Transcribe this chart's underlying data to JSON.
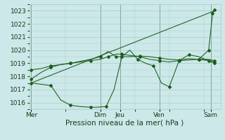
{
  "title": "",
  "xlabel": "Pression niveau de la mer( hPa )",
  "background_color": "#cce8e8",
  "grid_color": "#aacccc",
  "line_color": "#1a5c1a",
  "ylim": [
    1015.5,
    1023.5
  ],
  "xlim": [
    -0.1,
    9.6
  ],
  "day_labels": [
    "Mer",
    "Dim",
    "Jeu",
    "Ven",
    "Sam"
  ],
  "day_positions": [
    0.0,
    3.5,
    4.5,
    6.5,
    9.1
  ],
  "yticks": [
    1016,
    1017,
    1018,
    1019,
    1020,
    1021,
    1022,
    1023
  ],
  "series1_wavy": {
    "x": [
      0.0,
      0.5,
      1.0,
      1.5,
      2.0,
      2.5,
      3.0,
      3.3,
      3.8,
      4.2,
      4.6,
      5.0,
      5.4,
      5.8,
      6.2,
      6.6,
      7.0,
      7.5,
      8.0,
      8.5,
      9.0,
      9.3
    ],
    "y": [
      1017.5,
      1017.4,
      1017.3,
      1016.2,
      1015.8,
      1015.7,
      1015.65,
      1015.65,
      1015.7,
      1017.0,
      1019.5,
      1020.0,
      1019.3,
      1019.0,
      1018.8,
      1017.5,
      1017.2,
      1019.2,
      1019.65,
      1019.5,
      1019.2,
      1019.1
    ]
  },
  "series2_upper": {
    "x": [
      0.0,
      0.5,
      1.0,
      1.5,
      2.0,
      2.5,
      3.0,
      3.5,
      3.9,
      4.3,
      4.6,
      5.0,
      5.5,
      6.0,
      6.5,
      7.0,
      7.5,
      8.0,
      8.5,
      9.0,
      9.3
    ],
    "y": [
      1018.5,
      1018.6,
      1018.8,
      1018.9,
      1019.0,
      1019.1,
      1019.2,
      1019.3,
      1019.5,
      1019.7,
      1019.7,
      1019.6,
      1019.5,
      1019.3,
      1019.2,
      1019.1,
      1019.2,
      1019.25,
      1019.3,
      1019.3,
      1019.2
    ]
  },
  "series3_mid": {
    "x": [
      0.0,
      0.5,
      1.0,
      1.5,
      2.0,
      3.0,
      3.5,
      3.9,
      4.3,
      5.0,
      5.5,
      6.0,
      6.5,
      7.0,
      7.5,
      8.0,
      8.5,
      9.0,
      9.3
    ],
    "y": [
      1017.8,
      1018.3,
      1018.7,
      1018.9,
      1019.0,
      1019.3,
      1019.5,
      1019.9,
      1019.5,
      1019.5,
      1019.55,
      1019.5,
      1019.4,
      1019.3,
      1019.25,
      1019.35,
      1019.3,
      1019.2,
      1019.0
    ]
  },
  "series4_trend": {
    "x": [
      0.0,
      9.3
    ],
    "y": [
      1017.5,
      1023.0
    ]
  },
  "series5_rise": {
    "x": [
      8.5,
      9.0,
      9.2,
      9.3
    ],
    "y": [
      1019.3,
      1020.0,
      1022.8,
      1023.1
    ]
  }
}
